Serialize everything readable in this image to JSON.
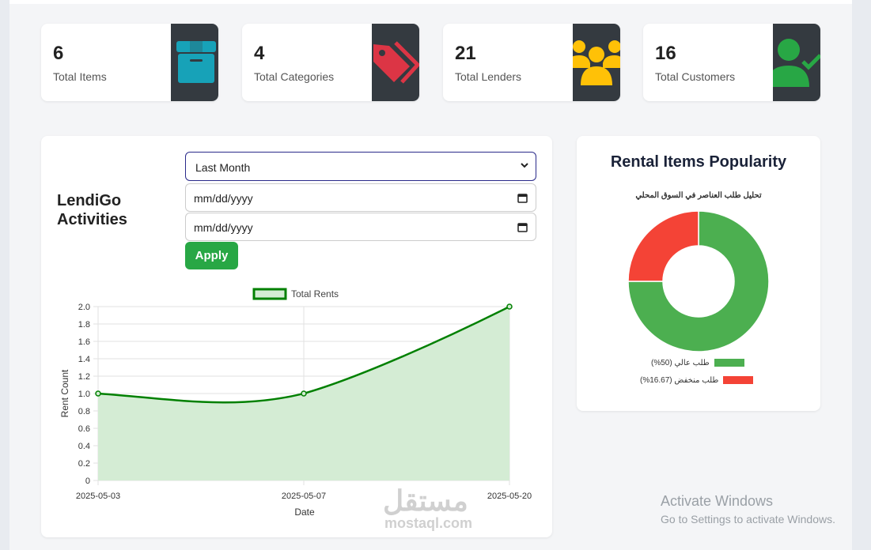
{
  "stats": [
    {
      "value": "6",
      "label": "Total Items",
      "icon": "box-icon",
      "color": "#17a2b8"
    },
    {
      "value": "4",
      "label": "Total Categories",
      "icon": "tag-icon",
      "color": "#dc3545"
    },
    {
      "value": "21",
      "label": "Total Lenders",
      "icon": "users-icon",
      "color": "#ffc107"
    },
    {
      "value": "16",
      "label": "Total Customers",
      "icon": "user-check-icon",
      "color": "#28a745"
    }
  ],
  "activities": {
    "title": "LendiGo Activities",
    "range_select": "Last Month",
    "date_from_placeholder": "mm/dd/yyyy",
    "date_to_placeholder": "mm/dd/yyyy",
    "apply_label": "Apply"
  },
  "popularity": {
    "title": "Rental Items Popularity",
    "subtitle": "تحليل طلب العناصر في السوق المحلي",
    "legend": [
      {
        "label": "طلب عالي (50%)",
        "color": "#4caf50"
      },
      {
        "label": "طلب منخفض (16.67%)",
        "color": "#f44336"
      }
    ]
  },
  "watermark": {
    "arabic": "مستقل",
    "latin": "mostaql.com"
  },
  "activate_windows": {
    "title": "Activate Windows",
    "subtitle": "Go to Settings to activate Windows."
  },
  "chart_data": [
    {
      "type": "line",
      "x": [
        "2025-05-03",
        "2025-05-07",
        "2025-05-20"
      ],
      "series": [
        {
          "name": "Total Rents",
          "values": [
            1,
            1,
            2
          ],
          "color": "#008000",
          "fill": "#d4ecd4"
        }
      ],
      "xlabel": "Date",
      "ylabel": "Rent Count",
      "ylim": [
        0,
        2
      ],
      "yticks": [
        "0",
        "0.2",
        "0.4",
        "0.6",
        "0.8",
        "1.0",
        "1.2",
        "1.4",
        "1.6",
        "1.8",
        "2.0"
      ],
      "legend": "top",
      "grid": true
    },
    {
      "type": "pie",
      "categories": [
        "طلب عالي",
        "طلب منخفض"
      ],
      "values": [
        75,
        25
      ],
      "colors": [
        "#4caf50",
        "#f44336"
      ],
      "donut": true,
      "legend": "bottom"
    }
  ]
}
